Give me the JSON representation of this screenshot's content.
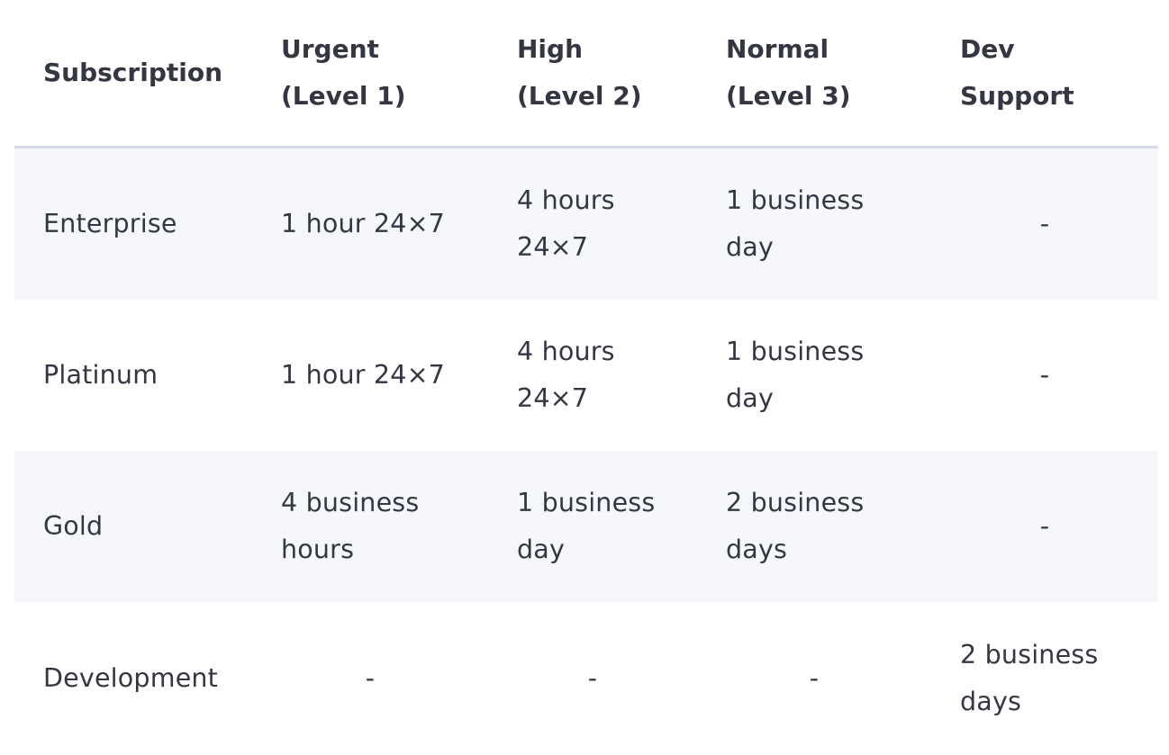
{
  "table": {
    "headers": [
      [
        "Subscription"
      ],
      [
        "Urgent",
        "(Level 1)"
      ],
      [
        "High",
        "(Level 2)"
      ],
      [
        "Normal",
        "(Level 3)"
      ],
      [
        "Dev",
        "Support"
      ]
    ],
    "rows": [
      {
        "subscription": "Enterprise",
        "urgent": "1 hour 24×7",
        "high": [
          "4 hours",
          "24×7"
        ],
        "normal": [
          "1 business",
          "day"
        ],
        "dev": "-"
      },
      {
        "subscription": "Platinum",
        "urgent": "1 hour 24×7",
        "high": [
          "4 hours",
          "24×7"
        ],
        "normal": [
          "1 business",
          "day"
        ],
        "dev": "-"
      },
      {
        "subscription": "Gold",
        "urgent": [
          "4 business",
          "hours"
        ],
        "high": [
          "1 business",
          "day"
        ],
        "normal": [
          "2 business",
          "days"
        ],
        "dev": "-"
      },
      {
        "subscription": "Development",
        "urgent": "-",
        "high": "-",
        "normal": "-",
        "dev": [
          "2 business",
          "days"
        ]
      }
    ]
  }
}
